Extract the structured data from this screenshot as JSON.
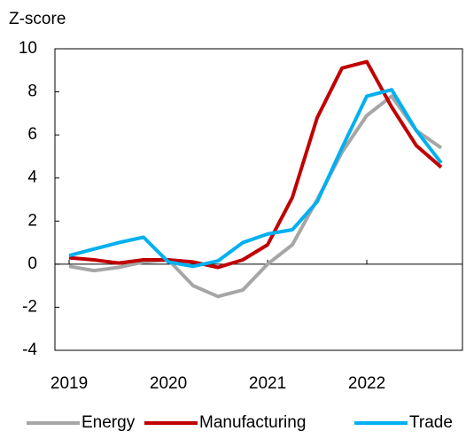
{
  "chart_data": {
    "type": "line",
    "y_label": "Z-score",
    "x": [
      2019,
      2019.25,
      2019.5,
      2019.75,
      2020,
      2020.25,
      2020.5,
      2020.75,
      2021,
      2021.25,
      2021.5,
      2021.75,
      2022,
      2022.25,
      2022.5,
      2022.75
    ],
    "series": [
      {
        "name": "Energy",
        "color": "#a6a6a6",
        "values": [
          -0.1,
          -0.3,
          -0.15,
          0.1,
          0.2,
          -1.0,
          -1.5,
          -1.2,
          0.0,
          0.9,
          3.0,
          5.2,
          6.9,
          7.8,
          6.2,
          5.4
        ]
      },
      {
        "name": "Manufacturing",
        "color": "#c00000",
        "values": [
          0.3,
          0.2,
          0.05,
          0.2,
          0.2,
          0.1,
          -0.15,
          0.2,
          0.9,
          3.1,
          6.8,
          9.1,
          9.4,
          7.3,
          5.5,
          4.5
        ]
      },
      {
        "name": "Trade",
        "color": "#00b0f0",
        "values": [
          0.4,
          0.7,
          1.0,
          1.25,
          0.1,
          -0.1,
          0.15,
          1.0,
          1.4,
          1.6,
          2.9,
          5.4,
          7.8,
          8.1,
          6.2,
          4.7
        ]
      }
    ],
    "xlim": [
      2018.857,
      2022.964
    ],
    "xticks": [
      2019,
      2020,
      2021,
      2022
    ],
    "ylim": [
      -4,
      10
    ],
    "yticks": [
      -4,
      -2,
      0,
      2,
      4,
      6,
      8,
      10
    ],
    "grid": false,
    "legend": "bottom"
  }
}
